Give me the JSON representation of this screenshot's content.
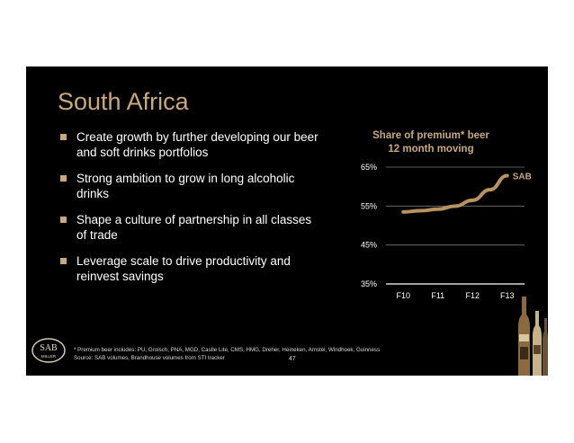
{
  "slide": {
    "title": "South Africa",
    "bullets": [
      "Create growth by further developing our beer and soft drinks portfolios",
      "Strong ambition to grow in long alcoholic drinks",
      "Shape a culture of partnership in all classes of trade",
      "Leverage scale to drive productivity and reinvest savings"
    ],
    "footnote_line1": "* Premium beer includes: PU, Grolsch, PNA, MGD, Castle Lite, CMS, HMG, Dreher, Heineken, Amstel, Windhoek, Guinness",
    "footnote_line2": "Source: SAB volumes, Brandhouse volumes from STI tracker",
    "page_number": "47",
    "logo_text_top": "SAB",
    "logo_text_bottom": "MILLER"
  },
  "colors": {
    "background": "#000000",
    "accent_gold": "#c9a97a",
    "line_color": "#b8935f",
    "text": "#ffffff"
  },
  "chart_data": {
    "type": "line",
    "title_line1": "Share of premium* beer",
    "title_line2": "12 month moving",
    "categories": [
      "F10",
      "F11",
      "F12",
      "F13"
    ],
    "y_ticks": [
      "35%",
      "45%",
      "55%",
      "65%"
    ],
    "ylim": [
      35,
      65
    ],
    "grid": true,
    "series": [
      {
        "name": "SAB",
        "x": [
          0,
          0.5,
          1,
          1.5,
          2,
          2.5,
          3
        ],
        "values": [
          53.5,
          53.8,
          54.2,
          55.0,
          56.5,
          59.2,
          62.8
        ]
      }
    ]
  }
}
